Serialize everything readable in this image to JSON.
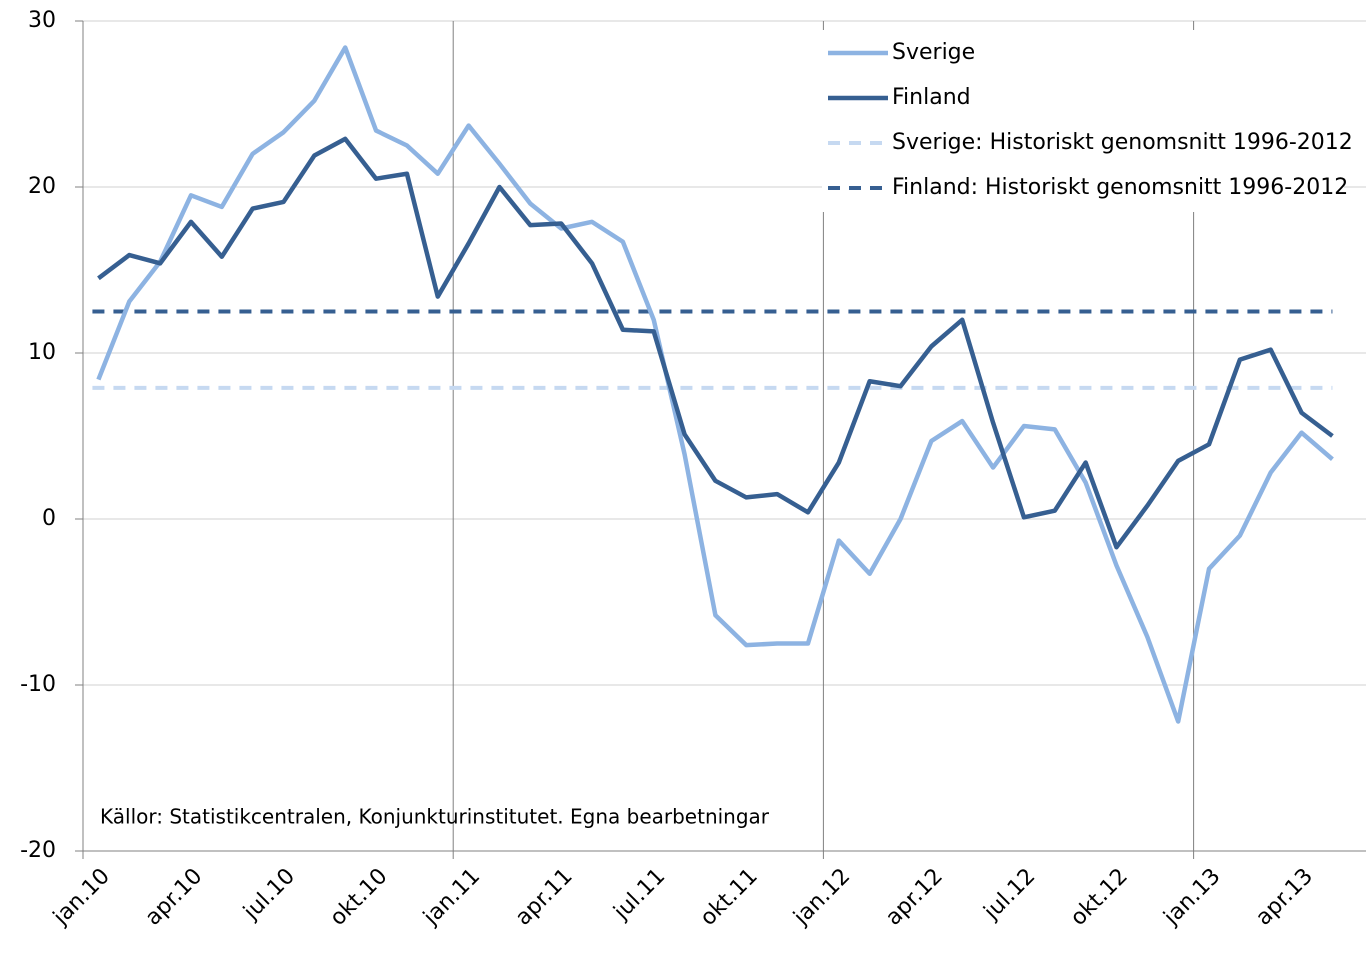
{
  "chart_data": {
    "type": "line",
    "categories": [
      "jan.10",
      null,
      null,
      "apr.10",
      null,
      null,
      "jul.10",
      null,
      null,
      "okt.10",
      null,
      null,
      "jan.11",
      null,
      null,
      "apr.11",
      null,
      null,
      "jul.11",
      null,
      null,
      "okt.11",
      null,
      null,
      "jan.12",
      null,
      null,
      "apr.12",
      null,
      null,
      "jul.12",
      null,
      null,
      "okt.12",
      null,
      null,
      "jan.13",
      null,
      null,
      "apr.13",
      null
    ],
    "series": [
      {
        "name": "Sverige",
        "color": "#8db3e2",
        "values": [
          8.4,
          13.1,
          15.5,
          19.5,
          18.8,
          22.0,
          23.3,
          25.2,
          28.4,
          23.4,
          22.5,
          20.8,
          23.7,
          21.4,
          19.0,
          17.5,
          17.9,
          16.7,
          12.0,
          3.9,
          -5.8,
          -7.6,
          -7.5,
          -7.5,
          -1.3,
          -3.3,
          0.0,
          4.7,
          5.9,
          3.1,
          5.6,
          5.4,
          2.2,
          -2.8,
          -7.1,
          -12.2,
          -3.0,
          -1.0,
          2.8,
          5.2,
          3.6
        ]
      },
      {
        "name": "Finland",
        "color": "#365f91",
        "values": [
          14.5,
          15.9,
          15.4,
          17.9,
          15.8,
          18.7,
          19.1,
          21.9,
          22.9,
          20.5,
          20.8,
          13.4,
          16.6,
          20.0,
          17.7,
          17.8,
          15.4,
          11.4,
          11.3,
          5.1,
          2.3,
          1.3,
          1.5,
          0.4,
          3.4,
          8.3,
          8.0,
          10.4,
          12.0,
          5.8,
          0.1,
          0.5,
          3.4,
          -1.7,
          0.8,
          3.5,
          4.5,
          9.6,
          10.2,
          6.4,
          5.0
        ]
      },
      {
        "name": "Sverige: Historiskt genomsnitt 1996-2012",
        "color": "#c6d9f1",
        "dashed": true,
        "value": 7.9
      },
      {
        "name": "Finland: Historiskt genomsnitt 1996-2012",
        "color": "#365f91",
        "dashed": true,
        "value": 12.5
      }
    ],
    "ylim": [
      -20,
      30
    ],
    "yticks": [
      -20,
      -10,
      0,
      10,
      20,
      30
    ],
    "grid": true,
    "x_major_every": 12,
    "legend": "upper right",
    "annotation": "Källor: Statistikcentralen, Konjunkturinstitutet. Egna bearbetningar"
  }
}
